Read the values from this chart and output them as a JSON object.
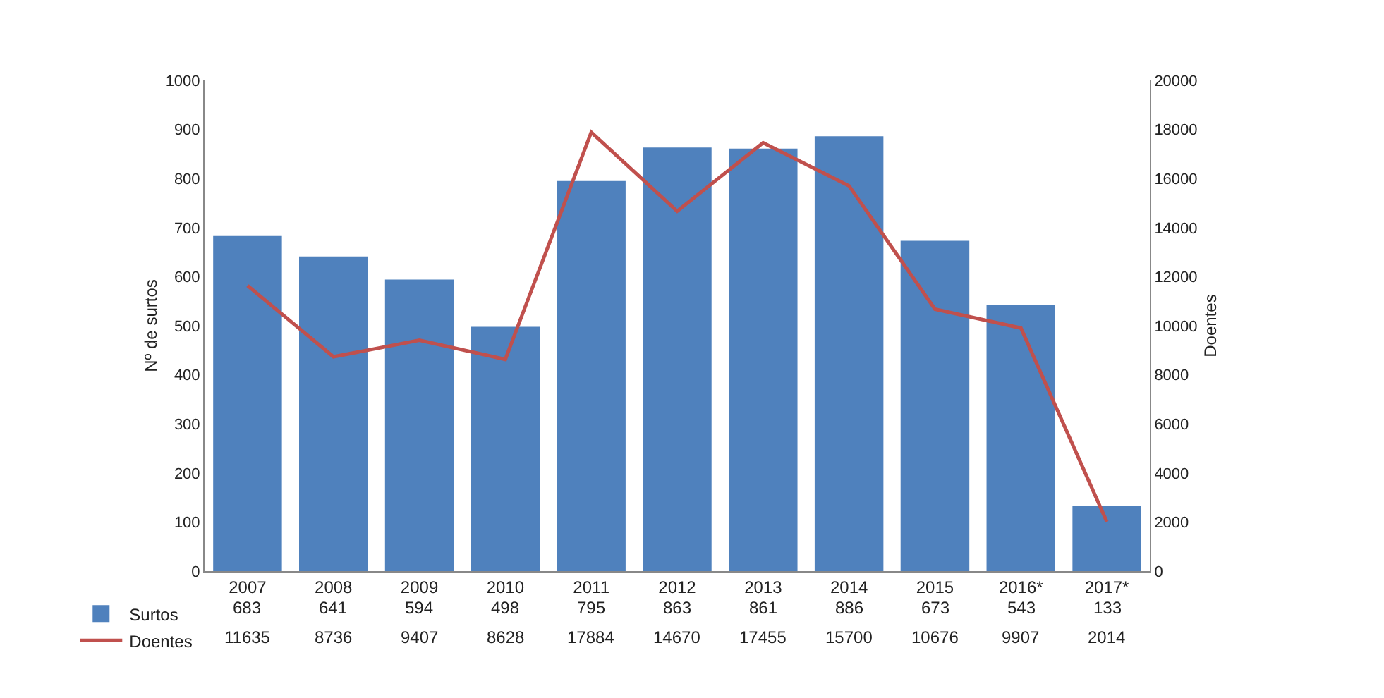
{
  "chart_data": {
    "type": "bar",
    "categories": [
      "2007",
      "2008",
      "2009",
      "2010",
      "2011",
      "2012",
      "2013",
      "2014",
      "2015",
      "2016*",
      "2017*"
    ],
    "series": [
      {
        "name": "Surtos",
        "color": "#4f81bd",
        "values": [
          683,
          641,
          594,
          498,
          795,
          863,
          861,
          886,
          673,
          543,
          133
        ]
      },
      {
        "name": "Doentes",
        "type": "line",
        "axis": "y2",
        "color": "#c0504d",
        "values": [
          11635,
          8736,
          9407,
          8628,
          17884,
          14670,
          17455,
          15700,
          10676,
          9907,
          2014
        ]
      }
    ],
    "ylabel": "Nº de surtos",
    "y2label": "Doentes",
    "ylim": [
      0,
      1000
    ],
    "yticks": [
      0,
      100,
      200,
      300,
      400,
      500,
      600,
      700,
      800,
      900,
      1000
    ],
    "y2lim": [
      0,
      20000
    ],
    "y2ticks": [
      0,
      2000,
      4000,
      6000,
      8000,
      10000,
      12000,
      14000,
      16000,
      18000,
      20000
    ],
    "legend": "bottom left",
    "data_labels": true,
    "marker": "none",
    "line_style": "solid"
  }
}
